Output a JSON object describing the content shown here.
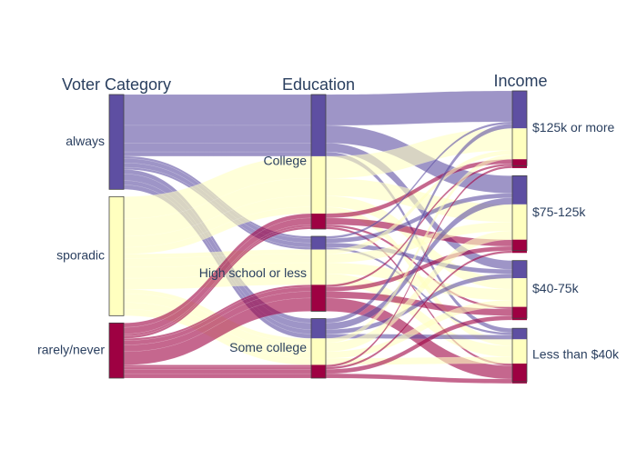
{
  "headers": [
    "Voter Category",
    "Education",
    "Income"
  ],
  "colors": {
    "always": "#5e4fa2",
    "sporadic": "#ffffbf",
    "rarely": "#9e0142",
    "link_always": "#5e4fa2",
    "link_sporadic": "#ffffbf",
    "link_rarely": "#9e0142",
    "stroke": "#444444"
  },
  "chart_data": {
    "type": "sankey",
    "stages": [
      {
        "name": "Voter Category",
        "nodes": [
          "always",
          "sporadic",
          "rarely/never"
        ]
      },
      {
        "name": "Education",
        "nodes": [
          "College",
          "High school or less",
          "Some college"
        ]
      },
      {
        "name": "Income",
        "nodes": [
          "$125k or more",
          "$75-125k",
          "$40-75k",
          "Less than $40k"
        ]
      }
    ],
    "voter_categories": [
      "always",
      "sporadic",
      "rarely/never"
    ],
    "flows": [
      {
        "voter": "always",
        "education": "College",
        "income": "$125k or more",
        "value": 14
      },
      {
        "voter": "always",
        "education": "College",
        "income": "$75-125k",
        "value": 8
      },
      {
        "voter": "always",
        "education": "College",
        "income": "$40-75k",
        "value": 4
      },
      {
        "voter": "always",
        "education": "College",
        "income": "Less than $40k",
        "value": 2
      },
      {
        "voter": "always",
        "education": "High school or less",
        "income": "$125k or more",
        "value": 1
      },
      {
        "voter": "always",
        "education": "High school or less",
        "income": "$75-125k",
        "value": 2
      },
      {
        "voter": "always",
        "education": "High school or less",
        "income": "$40-75k",
        "value": 2
      },
      {
        "voter": "always",
        "education": "High school or less",
        "income": "Less than $40k",
        "value": 1
      },
      {
        "voter": "always",
        "education": "Some college",
        "income": "$125k or more",
        "value": 2
      },
      {
        "voter": "always",
        "education": "Some college",
        "income": "$75-125k",
        "value": 3
      },
      {
        "voter": "always",
        "education": "Some college",
        "income": "$40-75k",
        "value": 2
      },
      {
        "voter": "always",
        "education": "Some college",
        "income": "Less than $40k",
        "value": 2
      },
      {
        "voter": "sporadic",
        "education": "College",
        "income": "$125k or more",
        "value": 10
      },
      {
        "voter": "sporadic",
        "education": "College",
        "income": "$75-125k",
        "value": 8
      },
      {
        "voter": "sporadic",
        "education": "College",
        "income": "$40-75k",
        "value": 5
      },
      {
        "voter": "sporadic",
        "education": "College",
        "income": "Less than $40k",
        "value": 3
      },
      {
        "voter": "sporadic",
        "education": "High school or less",
        "income": "$125k or more",
        "value": 2
      },
      {
        "voter": "sporadic",
        "education": "High school or less",
        "income": "$75-125k",
        "value": 4
      },
      {
        "voter": "sporadic",
        "education": "High school or less",
        "income": "$40-75k",
        "value": 5
      },
      {
        "voter": "sporadic",
        "education": "High school or less",
        "income": "Less than $40k",
        "value": 5
      },
      {
        "voter": "sporadic",
        "education": "Some college",
        "income": "$125k or more",
        "value": 2
      },
      {
        "voter": "sporadic",
        "education": "Some college",
        "income": "$75-125k",
        "value": 4
      },
      {
        "voter": "sporadic",
        "education": "Some college",
        "income": "$40-75k",
        "value": 3
      },
      {
        "voter": "sporadic",
        "education": "Some college",
        "income": "Less than $40k",
        "value": 3
      },
      {
        "voter": "rarely/never",
        "education": "College",
        "income": "$125k or more",
        "value": 2
      },
      {
        "voter": "rarely/never",
        "education": "College",
        "income": "$75-125k",
        "value": 3
      },
      {
        "voter": "rarely/never",
        "education": "College",
        "income": "$40-75k",
        "value": 1
      },
      {
        "voter": "rarely/never",
        "education": "College",
        "income": "Less than $40k",
        "value": 1
      },
      {
        "voter": "rarely/never",
        "education": "High school or less",
        "income": "$125k or more",
        "value": 1
      },
      {
        "voter": "rarely/never",
        "education": "High school or less",
        "income": "$75-125k",
        "value": 2
      },
      {
        "voter": "rarely/never",
        "education": "High school or less",
        "income": "$40-75k",
        "value": 3
      },
      {
        "voter": "rarely/never",
        "education": "High school or less",
        "income": "Less than $40k",
        "value": 6
      },
      {
        "voter": "rarely/never",
        "education": "Some college",
        "income": "$125k or more",
        "value": 1
      },
      {
        "voter": "rarely/never",
        "education": "Some college",
        "income": "$75-125k",
        "value": 1
      },
      {
        "voter": "rarely/never",
        "education": "Some college",
        "income": "$40-75k",
        "value": 2
      },
      {
        "voter": "rarely/never",
        "education": "Some college",
        "income": "Less than $40k",
        "value": 2
      }
    ]
  }
}
